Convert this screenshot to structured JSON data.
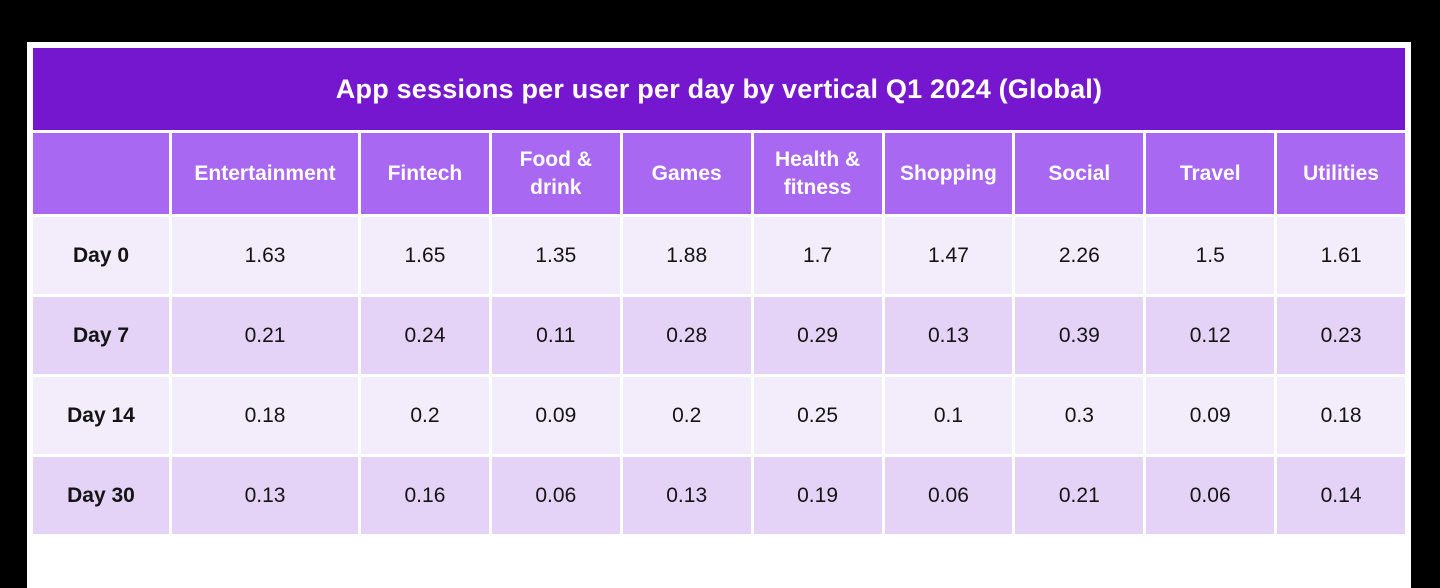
{
  "colors": {
    "title_bar": "#7517CE",
    "header_row": "#A968F2",
    "row_light": "#F3ECFB",
    "row_shaded": "#E4D3F7",
    "grid_line": "#FFFFFF",
    "title_text": "#FFFFFF",
    "header_text": "#FFFFFF",
    "cell_text": "#141414",
    "background": "#000000",
    "card": "#FFFFFF"
  },
  "chart_data": {
    "type": "table",
    "title": "App sessions per user per day by vertical Q1 2024 (Global)",
    "corner_label": "",
    "columns": [
      "Entertainment",
      "Fintech",
      "Food & drink",
      "Games",
      "Health & fitness",
      "Shopping",
      "Social",
      "Travel",
      "Utilities"
    ],
    "rows": [
      {
        "label": "Day 0",
        "values": [
          1.63,
          1.65,
          1.35,
          1.88,
          1.7,
          1.47,
          2.26,
          1.5,
          1.61
        ]
      },
      {
        "label": "Day 7",
        "values": [
          0.21,
          0.24,
          0.11,
          0.28,
          0.29,
          0.13,
          0.39,
          0.12,
          0.23
        ]
      },
      {
        "label": "Day 14",
        "values": [
          0.18,
          0.2,
          0.09,
          0.2,
          0.25,
          0.1,
          0.3,
          0.09,
          0.18
        ]
      },
      {
        "label": "Day 30",
        "values": [
          0.13,
          0.16,
          0.06,
          0.13,
          0.19,
          0.06,
          0.21,
          0.06,
          0.14
        ]
      }
    ]
  }
}
